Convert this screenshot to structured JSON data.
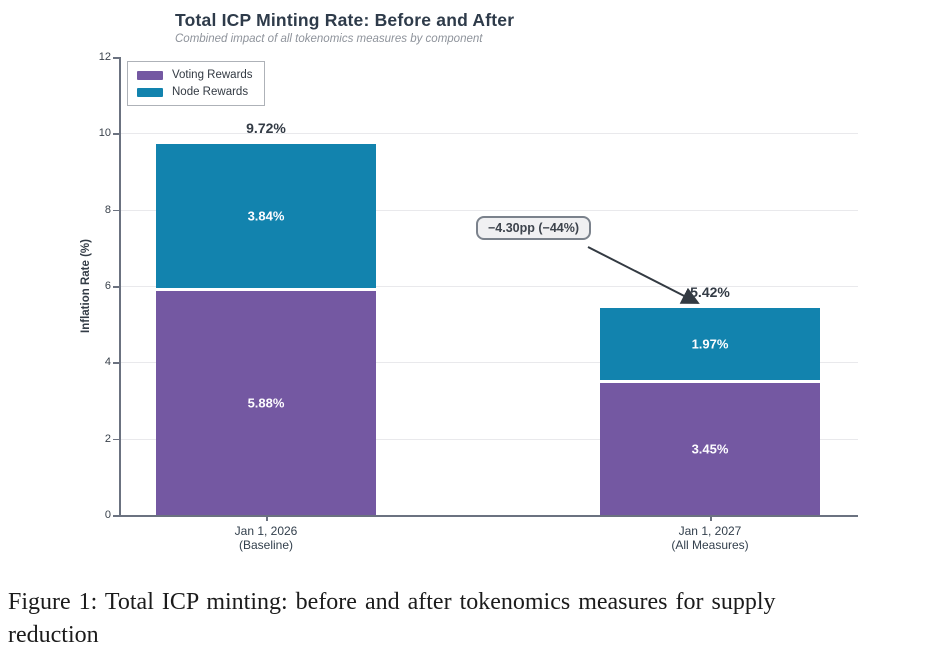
{
  "chart": {
    "title": "Total ICP Minting Rate: Before and After",
    "subtitle": "Combined impact of all tokenomics measures by component",
    "y_axis_label": "Inflation Rate (%)",
    "annotation_text": "−4.30pp (−44%)"
  },
  "chart_data": {
    "type": "bar",
    "stacked": true,
    "title": "Total ICP Minting Rate: Before and After",
    "subtitle": "Combined impact of all tokenomics measures by component",
    "xlabel": "",
    "ylabel": "Inflation Rate (%)",
    "ylim": [
      0,
      12
    ],
    "y_ticks": [
      0,
      2,
      4,
      6,
      8,
      10,
      12
    ],
    "grid": true,
    "legend_position": "top-left",
    "categories": [
      [
        "Jan 1, 2026",
        "(Baseline)"
      ],
      [
        "Jan 1, 2027",
        "(All Measures)"
      ]
    ],
    "series": [
      {
        "name": "Voting Rewards",
        "color": "#7458a2",
        "values": [
          5.88,
          3.45
        ]
      },
      {
        "name": "Node Rewards",
        "color": "#1283ae",
        "values": [
          3.84,
          1.97
        ]
      }
    ],
    "segment_labels": [
      [
        "5.88%",
        "3.45%"
      ],
      [
        "3.84%",
        "1.97%"
      ]
    ],
    "totals": [
      "9.72%",
      "5.42%"
    ],
    "annotation": "−4.30pp (−44%)",
    "annotation_points_from": "callout box",
    "annotation_points_to": "Jan 1, 2027 bar top"
  },
  "caption": {
    "line1": "Figure 1: Total ICP minting: before and after tokenomics measures for supply",
    "line2": "reduction"
  }
}
